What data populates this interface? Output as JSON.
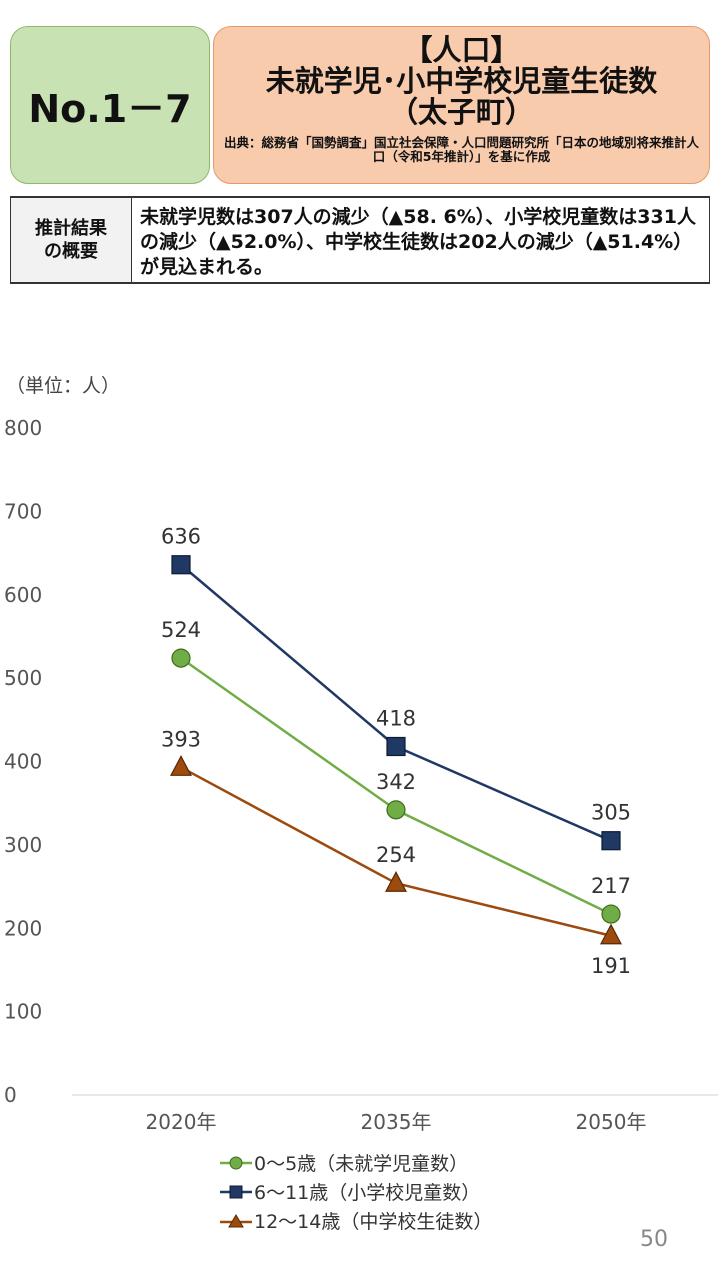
{
  "header": {
    "number": "No.1－7",
    "title_lines": [
      "【人口】",
      "未就学児･小中学校児童生徒数",
      "（太子町）"
    ],
    "source": "出典：総務省「国勢調査」国立社会保障・人口問題研究所「日本の地域別将来推計人口（令和5年推計）」を基に作成"
  },
  "summary": {
    "label": "推計結果の概要",
    "text": "未就学児数は307人の減少（▲58. 6%）、小学校児童数は331人の減少（▲52.0%）、中学校生徒数は202人の減少（▲51.4%）が見込まれる。"
  },
  "unit_label": "（単位：人）",
  "page_number": "50",
  "chart_data": {
    "type": "line",
    "categories": [
      "2020年",
      "2035年",
      "2050年"
    ],
    "ylim": [
      0,
      800
    ],
    "yticks": [
      0,
      100,
      200,
      300,
      400,
      500,
      600,
      700,
      800
    ],
    "grid": false,
    "legend_position": "bottom",
    "series": [
      {
        "name": "0～5歳（未就学児童数）",
        "values": [
          524,
          342,
          217
        ],
        "color": "#70ad47",
        "marker": "circle"
      },
      {
        "name": "6～11歳（小学校児童数）",
        "values": [
          636,
          418,
          305
        ],
        "color": "#203864",
        "marker": "square"
      },
      {
        "name": "12～14歳（中学校生徒数）",
        "values": [
          393,
          254,
          191
        ],
        "color": "#9c4a0d",
        "marker": "triangle"
      }
    ]
  }
}
